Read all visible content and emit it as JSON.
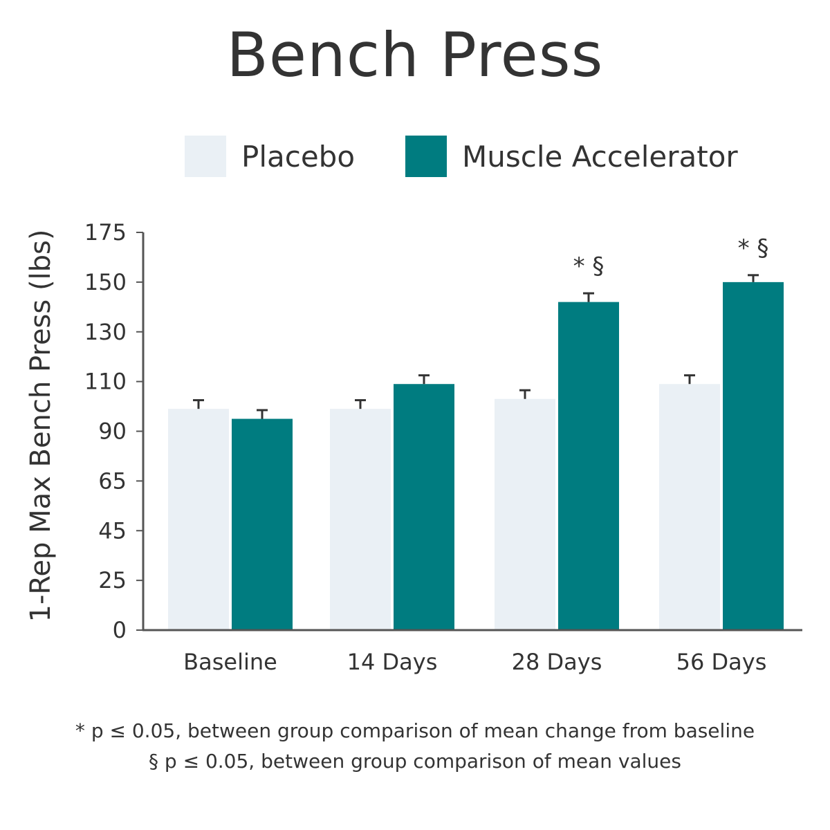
{
  "colors": {
    "placebo": "#eaf0f5",
    "muscle_accelerator": "#007c80",
    "axis": "#555555",
    "error_bar": "#333333"
  },
  "legend": [
    {
      "label": "Placebo",
      "color": "#eaf0f5"
    },
    {
      "label": "Muscle Accelerator",
      "color": "#007c80"
    }
  ],
  "footnotes": [
    "* p ≤ 0.05, between group comparison of mean change from baseline",
    "§ p ≤ 0.05, between group comparison of mean values"
  ],
  "chart_data": {
    "type": "bar",
    "title": "Bench Press",
    "xlabel": "",
    "ylabel": "1-Rep Max Bench Press (lbs)",
    "categories": [
      "Baseline",
      "14 Days",
      "28 Days",
      "56 Days"
    ],
    "yticks": [
      0,
      25,
      45,
      65,
      90,
      110,
      130,
      150,
      175
    ],
    "series": [
      {
        "name": "Placebo",
        "values": [
          99,
          99,
          103,
          109
        ],
        "errors": [
          3.5,
          3.5,
          3.5,
          3.5
        ]
      },
      {
        "name": "Muscle Accelerator",
        "values": [
          95,
          109,
          142,
          150
        ],
        "errors": [
          3.5,
          3.5,
          3.5,
          3.5
        ]
      }
    ],
    "annotations": [
      {
        "category": "28 Days",
        "series": "Muscle Accelerator",
        "text": "* §"
      },
      {
        "category": "56 Days",
        "series": "Muscle Accelerator",
        "text": "* §"
      }
    ],
    "legend_position": "top",
    "grid": false
  }
}
